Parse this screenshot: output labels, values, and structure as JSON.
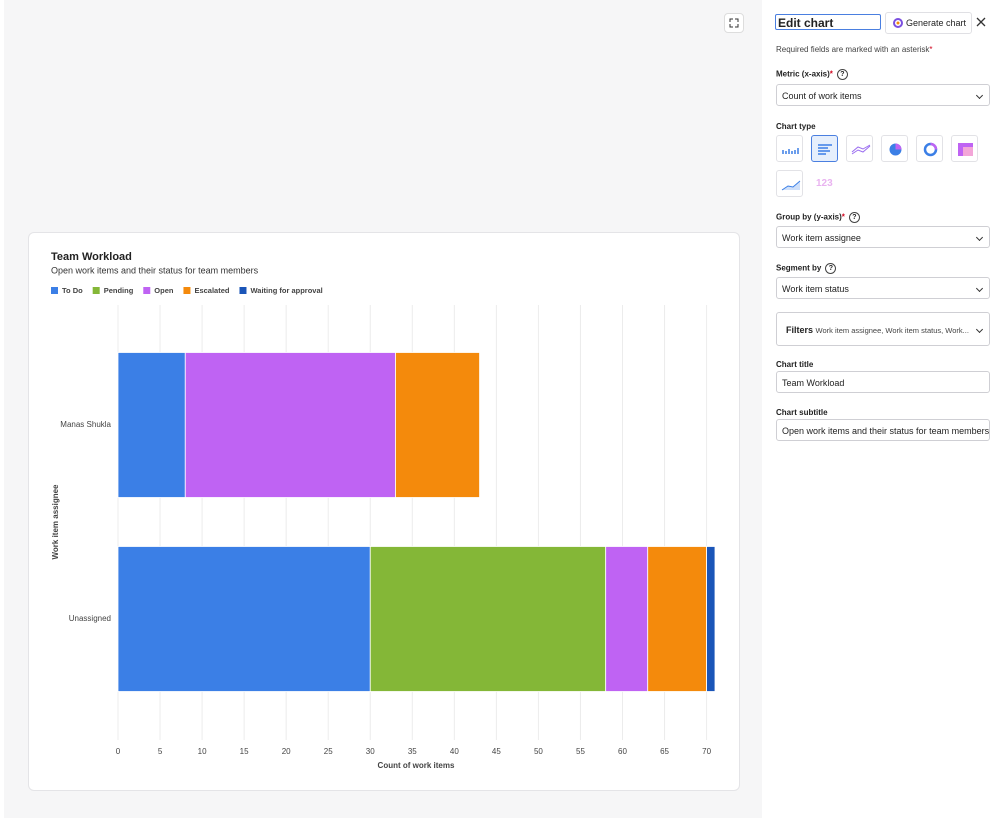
{
  "chart_data": {
    "type": "bar",
    "orientation": "horizontal",
    "stacked": true,
    "title": "Team Workload",
    "subtitle": "Open work items and their status for team members",
    "x_label": "Count of work items",
    "y_label": "Work item assignee",
    "categories": [
      "Manas Shukla",
      "Unassigned"
    ],
    "series": [
      {
        "name": "To Do",
        "color": "#3b7fe6",
        "values": [
          8,
          30
        ]
      },
      {
        "name": "Pending",
        "color": "#84b737",
        "values": [
          0,
          28
        ]
      },
      {
        "name": "Open",
        "color": "#bf63f3",
        "values": [
          25,
          5
        ]
      },
      {
        "name": "Escalated",
        "color": "#f48a0c",
        "values": [
          10,
          7
        ]
      },
      {
        "name": "Waiting for approval",
        "color": "#1a55b8",
        "values": [
          0,
          1
        ]
      }
    ],
    "xlim": [
      0,
      71
    ],
    "xticks": [
      0,
      5,
      10,
      15,
      20,
      25,
      30,
      35,
      40,
      45,
      50,
      55,
      60,
      65,
      70
    ],
    "grid": true,
    "legend": "top-left"
  },
  "panel": {
    "heading": "Edit chart",
    "generate_button": "Generate chart",
    "required_note": "Required fields are marked with an asterisk",
    "asterisk": "*",
    "help": "?",
    "metric_label": "Metric (x-axis)",
    "metric_value": "Count of work items",
    "chart_type_label": "Chart type",
    "number_icon": "123",
    "group_label": "Group by (y-axis)",
    "group_value": "Work item assignee",
    "segment_label": "Segment by",
    "segment_value": "Work item status",
    "filters_label": "Filters",
    "filters_value": "Work item assignee, Work item status, Work...",
    "title_label": "Chart title",
    "subtitle_label": "Chart subtitle"
  }
}
